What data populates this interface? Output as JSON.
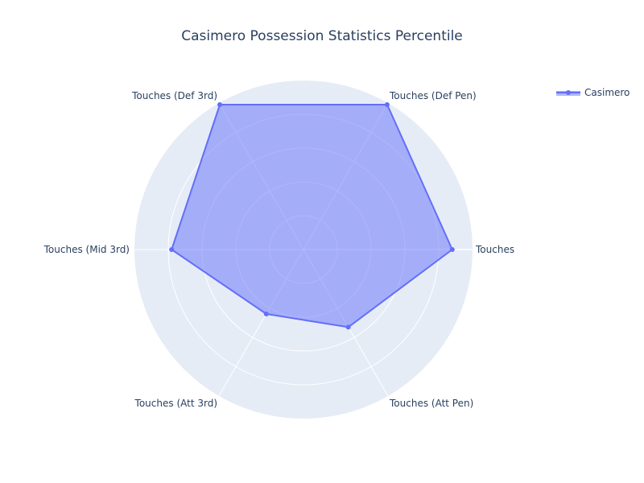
{
  "chart_data": {
    "type": "radar",
    "title": "Casimero Possession Statistics Percentile",
    "categories": [
      "Touches",
      "Touches (Def Pen)",
      "Touches (Def 3rd)",
      "Touches (Mid 3rd)",
      "Touches (Att 3rd)",
      "Touches (Att Pen)"
    ],
    "series": [
      {
        "name": "Casimero",
        "values": [
          88,
          99,
          99,
          78,
          44,
          53
        ]
      }
    ],
    "rlim": [
      0,
      100
    ],
    "grid": true,
    "legend": "top-right",
    "colors": {
      "line": "#636efa",
      "fill": "#636efa",
      "polar_bg": "#e5ecf6",
      "grid": "#ffffff",
      "text": "#2a3f5f"
    }
  }
}
